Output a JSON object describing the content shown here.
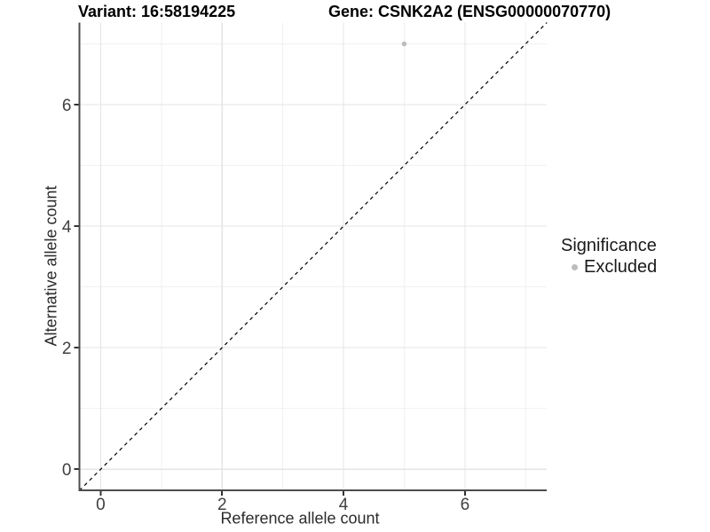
{
  "titles": {
    "variant": "Variant: 16:58194225",
    "gene": "Gene: CSNK2A2 (ENSG00000070770)"
  },
  "legend": {
    "title": "Significance",
    "items": [
      {
        "label": "Excluded",
        "color": "#bdbdbd"
      }
    ]
  },
  "colors": {
    "background": "#ffffff",
    "grid_major": "#e4e4e4",
    "grid_minor": "#f1f1f1",
    "axis_line": "#4d4d4d",
    "tick_mark": "#333333",
    "tick_text": "#404040",
    "reference_line": "#000000",
    "excluded_point": "#bdbdbd"
  },
  "chart_data": {
    "type": "scatter",
    "title": "Variant: 16:58194225 | Gene: CSNK2A2 (ENSG00000070770)",
    "xlabel": "Reference allele count",
    "ylabel": "Alternative allele count",
    "xlim": [
      -0.35,
      7.35
    ],
    "ylim": [
      -0.35,
      7.35
    ],
    "x_ticks": [
      0,
      2,
      4,
      6
    ],
    "y_ticks": [
      0,
      2,
      4,
      6
    ],
    "x_minor_ticks": [
      1,
      3,
      5,
      7
    ],
    "y_minor_ticks": [
      1,
      3,
      5,
      7
    ],
    "grid": true,
    "legend_position": "right",
    "series": [
      {
        "name": "Excluded",
        "color": "#bdbdbd",
        "points": [
          {
            "x": 5,
            "y": 7
          }
        ]
      }
    ],
    "reference_line": {
      "type": "identity",
      "style": "dashed",
      "from": [
        -0.35,
        -0.35
      ],
      "to": [
        7.35,
        7.35
      ]
    }
  }
}
